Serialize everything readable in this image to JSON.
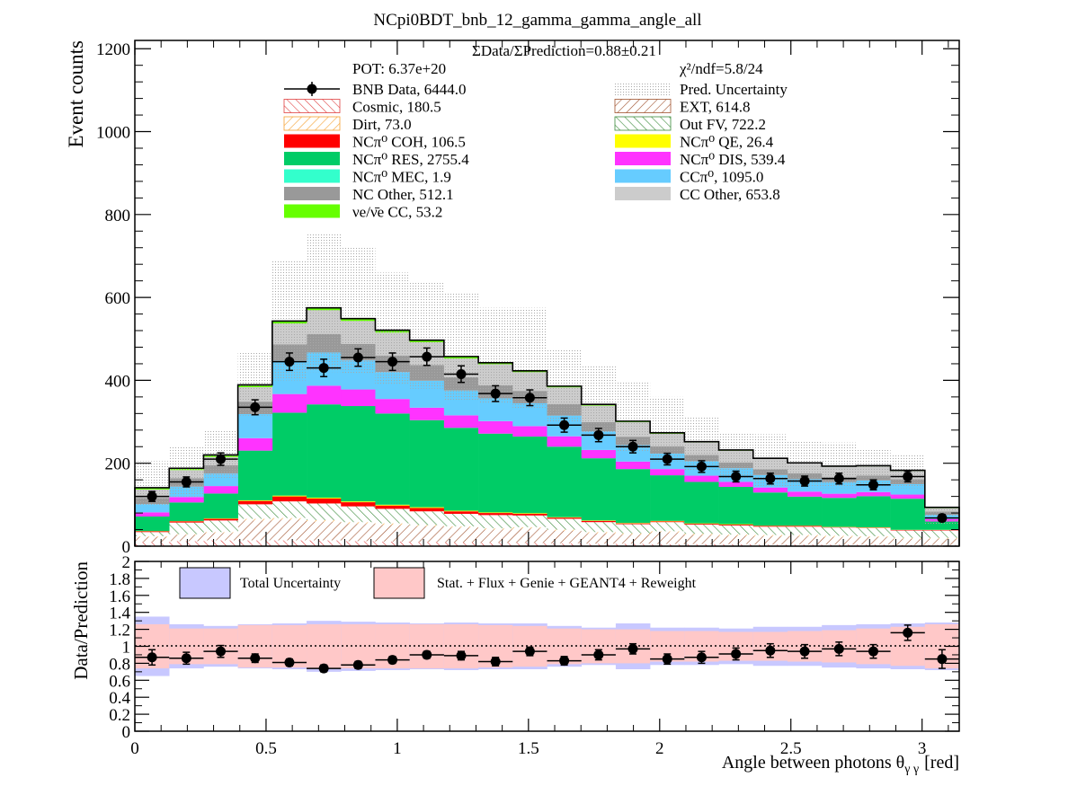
{
  "chart_data": {
    "type": "bar",
    "stacked": true,
    "title": "NCpi0BDT_bnb_12_gamma_gamma_angle_all",
    "ylabel": "Event counts",
    "xlabel_main": "Angle between photons θ",
    "xlabel_sub": "γ γ",
    "xlabel_unit": "[red]",
    "ratio_ylabel": "Data/Prediction",
    "ylim": [
      0,
      1220
    ],
    "ratio_ylim": [
      0,
      2
    ],
    "xlim": [
      0,
      3.1416
    ],
    "x_ticks": [
      "0",
      "0.5",
      "1",
      "1.5",
      "2",
      "2.5",
      "3"
    ],
    "x_tick_values": [
      0,
      0.5,
      1,
      1.5,
      2,
      2.5,
      3
    ],
    "y_ticks": [
      "0",
      "200",
      "400",
      "600",
      "800",
      "1000",
      "1200"
    ],
    "y_tick_values": [
      0,
      200,
      400,
      600,
      800,
      1000,
      1200
    ],
    "ratio_ticks": [
      "0",
      "0.2",
      "0.4",
      "0.6",
      "0.8",
      "1",
      "1.2",
      "1.4",
      "1.6",
      "1.8",
      "2"
    ],
    "ratio_tick_values": [
      0,
      0.2,
      0.4,
      0.6,
      0.8,
      1,
      1.2,
      1.4,
      1.6,
      1.8,
      2
    ],
    "bin_edges": [
      0,
      0.1309,
      0.2618,
      0.3927,
      0.5236,
      0.6545,
      0.7854,
      0.9163,
      1.0472,
      1.1781,
      1.309,
      1.4399,
      1.5708,
      1.7017,
      1.8326,
      1.9635,
      2.0944,
      2.2253,
      2.3562,
      2.4871,
      2.618,
      2.7489,
      2.8798,
      3.0107,
      3.1416
    ],
    "summary": "ΣData/ΣPrediction=0.88±0.21",
    "pot": "POT: 6.37e+20",
    "chi2": "χ²/ndf=5.8/24",
    "legend": [
      {
        "label": "BNB Data, 6444.0",
        "style": "data",
        "color": "#000000"
      },
      {
        "label": "Pred. Uncertainty",
        "style": "dots",
        "color": "#b0b0b0"
      },
      {
        "label": "Cosmic, 180.5",
        "style": "hatch",
        "color": "#e04040"
      },
      {
        "label": "EXT, 614.8",
        "style": "hatch",
        "color": "#a0522d"
      },
      {
        "label": "Dirt, 73.0",
        "style": "hatch",
        "color": "#f5a030"
      },
      {
        "label": "Out FV, 722.2",
        "style": "hatch",
        "color": "#3a8a3a"
      },
      {
        "label": "NCπ⁰ COH,  106.5",
        "style": "fill",
        "color": "#ff0000"
      },
      {
        "label": "NCπ⁰ QE,  26.4",
        "style": "fill",
        "color": "#ffff00"
      },
      {
        "label": "NCπ⁰ RES,  2755.4",
        "style": "fill",
        "color": "#00cc66"
      },
      {
        "label": "NCπ⁰ DIS,  539.4",
        "style": "fill",
        "color": "#ff33ff"
      },
      {
        "label": "NCπ⁰ MEC,  1.9",
        "style": "fill",
        "color": "#33ffcc"
      },
      {
        "label": "CCπ⁰, 1095.0",
        "style": "fill",
        "color": "#66ccff"
      },
      {
        "label": "NC Other, 512.1",
        "style": "fill",
        "color": "#999999"
      },
      {
        "label": "CC Other, 653.8",
        "style": "fill",
        "color": "#cccccc"
      },
      {
        "label": "νe/ν̄e CC, 53.2",
        "style": "fill",
        "color": "#66ff00"
      }
    ],
    "ratio_legend": [
      {
        "label": "Total Uncertainty",
        "color": "#c8c8ff"
      },
      {
        "label": "Stat. + Flux + Genie + GEANT4 + Reweight",
        "color": "#ffc8c8"
      }
    ],
    "series": [
      {
        "name": "Cosmic, 180.5",
        "color": "#e04040",
        "style": "hatch",
        "values": [
          10,
          12,
          14,
          14,
          14,
          14,
          12,
          11,
          10,
          9,
          8,
          8,
          7,
          6,
          6,
          5,
          5,
          5,
          4,
          4,
          4,
          4,
          3,
          3
        ]
      },
      {
        "name": "EXT, 614.8",
        "color": "#a0522d",
        "style": "hatch",
        "values": [
          12,
          15,
          18,
          48,
          50,
          45,
          42,
          40,
          38,
          36,
          32,
          35,
          30,
          25,
          22,
          28,
          22,
          20,
          20,
          20,
          18,
          18,
          15,
          15
        ]
      },
      {
        "name": "Dirt, 73.0",
        "color": "#f5a030",
        "style": "hatch",
        "values": [
          2,
          2,
          2,
          4,
          4,
          4,
          4,
          4,
          3,
          3,
          3,
          3,
          3,
          3,
          3,
          3,
          3,
          3,
          3,
          3,
          3,
          2,
          2,
          2
        ]
      },
      {
        "name": "Out FV, 722.2",
        "color": "#3a8a3a",
        "style": "hatch",
        "values": [
          10,
          28,
          28,
          35,
          40,
          40,
          38,
          35,
          33,
          30,
          32,
          28,
          26,
          24,
          22,
          22,
          22,
          22,
          20,
          20,
          20,
          20,
          18,
          18
        ]
      },
      {
        "name": "NCπ⁰ COH,  106.5",
        "color": "#ff0000",
        "style": "fill",
        "values": [
          2,
          3,
          4,
          8,
          12,
          12,
          10,
          8,
          8,
          6,
          5,
          4,
          3,
          3,
          2,
          2,
          2,
          2,
          2,
          2,
          1,
          1,
          1,
          1
        ]
      },
      {
        "name": "NCπ⁰ QE,  26.4",
        "color": "#ffff00",
        "style": "fill",
        "values": [
          0.5,
          0.5,
          1,
          1.5,
          2,
          2,
          2,
          2,
          2,
          1.5,
          1.5,
          1.5,
          1,
          1,
          1,
          1,
          1,
          1,
          0.5,
          0.5,
          0.5,
          0.5,
          0.5,
          0.5
        ]
      },
      {
        "name": "NCπ⁰ RES,  2755.4",
        "color": "#00cc66",
        "style": "fill",
        "values": [
          35,
          45,
          60,
          120,
          200,
          225,
          230,
          220,
          210,
          200,
          190,
          185,
          170,
          150,
          130,
          110,
          100,
          90,
          80,
          70,
          70,
          75,
          75,
          20
        ]
      },
      {
        "name": "NCπ⁰ DIS,  539.4",
        "color": "#ff33ff",
        "style": "fill",
        "values": [
          10,
          13,
          18,
          30,
          45,
          45,
          40,
          35,
          30,
          30,
          30,
          25,
          25,
          20,
          18,
          15,
          15,
          12,
          12,
          12,
          10,
          10,
          10,
          6
        ]
      },
      {
        "name": "NCπ⁰ MEC,  1.9",
        "color": "#33ffcc",
        "style": "fill",
        "values": [
          0.1,
          0.1,
          0.1,
          0.1,
          0.1,
          0.1,
          0.1,
          0.1,
          0.1,
          0.1,
          0.1,
          0.1,
          0.1,
          0.1,
          0.1,
          0.1,
          0.1,
          0.1,
          0.1,
          0.1,
          0.1,
          0.1,
          0.1,
          0.1
        ]
      },
      {
        "name": "CCπ⁰, 1095.0",
        "color": "#66ccff",
        "style": "fill",
        "values": [
          20,
          25,
          30,
          58,
          80,
          80,
          70,
          65,
          65,
          60,
          55,
          55,
          50,
          45,
          40,
          37,
          35,
          33,
          30,
          30,
          28,
          28,
          25,
          10
        ]
      },
      {
        "name": "NC Other, 512.1",
        "color": "#999999",
        "style": "fill",
        "values": [
          15,
          20,
          20,
          30,
          40,
          45,
          40,
          40,
          38,
          32,
          32,
          30,
          28,
          22,
          20,
          18,
          15,
          14,
          14,
          14,
          13,
          12,
          12,
          8
        ]
      },
      {
        "name": "CC Other, 653.8",
        "color": "#cccccc",
        "style": "fill",
        "values": [
          20,
          20,
          20,
          35,
          50,
          57,
          55,
          55,
          55,
          45,
          50,
          45,
          40,
          40,
          35,
          30,
          30,
          28,
          25,
          24,
          24,
          22,
          20,
          8
        ]
      },
      {
        "name": "νe/ν̄e CC, 53.2",
        "color": "#66ff00",
        "style": "fill",
        "values": [
          4.4,
          4.4,
          4.9,
          5.4,
          5.9,
          5.9,
          5.9,
          5.9,
          4.9,
          4.9,
          3.9,
          3.4,
          2.9,
          2.9,
          2.4,
          2.4,
          1.9,
          1.9,
          1.4,
          1.4,
          1.4,
          1.4,
          1.4,
          1.9
        ]
      }
    ],
    "prediction_band": {
      "low": [
        95,
        120,
        165,
        315,
        400,
        420,
        415,
        390,
        380,
        350,
        345,
        330,
        300,
        270,
        230,
        205,
        180,
        160,
        145,
        140,
        140,
        140,
        140,
        50
      ],
      "high": [
        205,
        240,
        280,
        470,
        690,
        755,
        720,
        660,
        635,
        610,
        575,
        575,
        475,
        435,
        395,
        360,
        310,
        275,
        270,
        255,
        250,
        235,
        220,
        95
      ]
    },
    "data": {
      "values": [
        120,
        155,
        210,
        335,
        445,
        430,
        455,
        445,
        457,
        415,
        368,
        358,
        292,
        268,
        240,
        210,
        192,
        168,
        163,
        157,
        163,
        148,
        168,
        68
      ],
      "errors": [
        12,
        12,
        15,
        18,
        21,
        21,
        21,
        21,
        21,
        20,
        19,
        19,
        17,
        16,
        15,
        14,
        14,
        13,
        13,
        12,
        13,
        12,
        13,
        8
      ]
    },
    "ratio": {
      "values": [
        0.87,
        0.86,
        0.94,
        0.86,
        0.81,
        0.74,
        0.78,
        0.84,
        0.9,
        0.89,
        0.82,
        0.94,
        0.83,
        0.9,
        0.97,
        0.85,
        0.87,
        0.91,
        0.95,
        0.94,
        0.97,
        0.94,
        1.16,
        0.85
      ],
      "errors": [
        0.09,
        0.07,
        0.07,
        0.05,
        0.04,
        0.04,
        0.04,
        0.04,
        0.04,
        0.05,
        0.05,
        0.05,
        0.05,
        0.06,
        0.06,
        0.06,
        0.07,
        0.07,
        0.08,
        0.08,
        0.08,
        0.08,
        0.09,
        0.11
      ],
      "total_unc": [
        0.35,
        0.26,
        0.24,
        0.26,
        0.27,
        0.3,
        0.29,
        0.28,
        0.27,
        0.28,
        0.27,
        0.27,
        0.24,
        0.22,
        0.27,
        0.22,
        0.22,
        0.21,
        0.23,
        0.23,
        0.25,
        0.26,
        0.27,
        0.28
      ],
      "stat_unc": [
        0.26,
        0.21,
        0.21,
        0.25,
        0.25,
        0.26,
        0.26,
        0.26,
        0.26,
        0.26,
        0.25,
        0.24,
        0.21,
        0.2,
        0.2,
        0.18,
        0.18,
        0.17,
        0.17,
        0.18,
        0.19,
        0.21,
        0.23,
        0.26
      ]
    }
  }
}
